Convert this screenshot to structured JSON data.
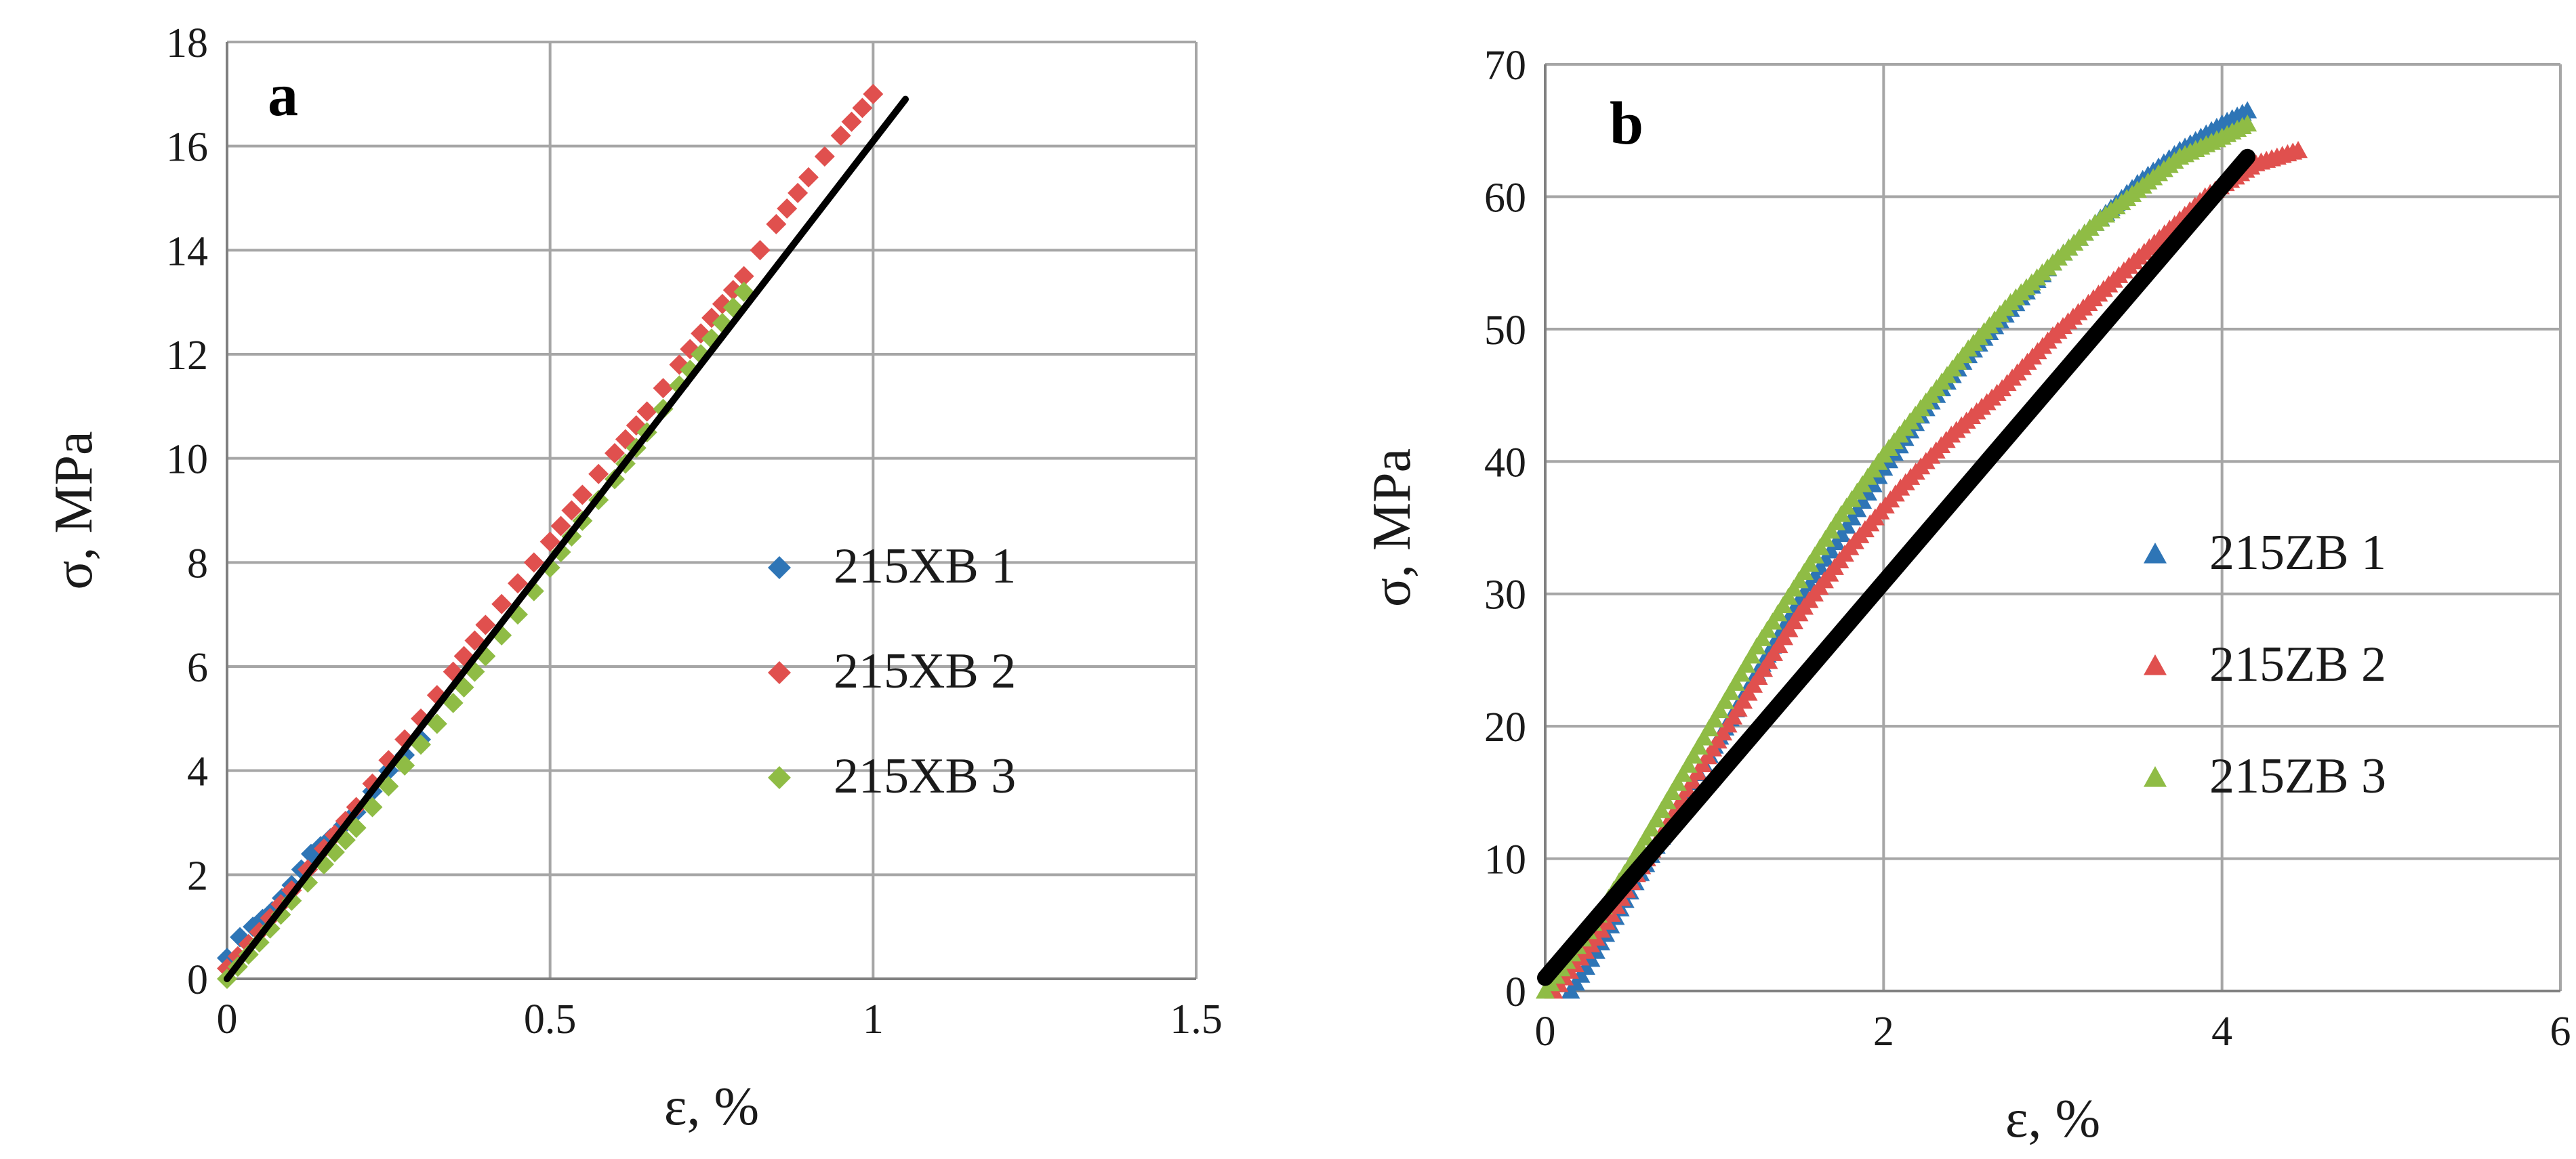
{
  "chart_data": [
    {
      "type": "scatter",
      "panel": "a",
      "xlabel": "ε, %",
      "ylabel": "σ, MPa",
      "xlim": [
        0,
        1.5
      ],
      "ylim": [
        0,
        18
      ],
      "xticks": [
        "0",
        "0.5",
        "1",
        "1.5"
      ],
      "yticks": [
        "0",
        "2",
        "4",
        "6",
        "8",
        "10",
        "12",
        "14",
        "16",
        "18"
      ],
      "legend_position": "right-middle",
      "series": [
        {
          "name": "215XB 1",
          "color": "#2e75b6",
          "marker": "diamond",
          "x": [
            0.0,
            0.02,
            0.04,
            0.07,
            0.1,
            0.13,
            0.16,
            0.2,
            0.25,
            0.3
          ],
          "y": [
            0.4,
            0.8,
            1.0,
            1.3,
            1.8,
            2.4,
            2.7,
            3.2,
            4.0,
            4.6
          ]
        },
        {
          "name": "215XB 2",
          "color": "#e0504e",
          "marker": "diamond",
          "x": [
            0.0,
            0.05,
            0.1,
            0.15,
            0.2,
            0.25,
            0.3,
            0.35,
            0.4,
            0.45,
            0.5,
            0.55,
            0.6,
            0.65,
            0.7,
            0.75,
            0.8,
            0.85,
            0.9,
            0.95,
            1.0
          ],
          "y": [
            0.2,
            0.9,
            1.7,
            2.5,
            3.3,
            4.2,
            5.0,
            5.9,
            6.8,
            7.6,
            8.4,
            9.3,
            10.1,
            10.9,
            11.8,
            12.7,
            13.5,
            14.5,
            15.4,
            16.2,
            17.0
          ]
        },
        {
          "name": "215XB 3",
          "color": "#8fbc45",
          "marker": "diamond",
          "x": [
            0.0,
            0.05,
            0.1,
            0.15,
            0.2,
            0.25,
            0.3,
            0.35,
            0.4,
            0.45,
            0.5,
            0.55,
            0.6,
            0.65,
            0.7,
            0.75,
            0.8
          ],
          "y": [
            0.0,
            0.7,
            1.5,
            2.2,
            2.9,
            3.7,
            4.5,
            5.3,
            6.2,
            7.0,
            7.9,
            8.8,
            9.6,
            10.5,
            11.4,
            12.3,
            13.2
          ]
        }
      ],
      "fit_line": {
        "color": "#000000",
        "x": [
          0,
          1.05
        ],
        "y": [
          0,
          16.9
        ]
      }
    },
    {
      "type": "scatter",
      "panel": "b",
      "xlabel": "ε, %",
      "ylabel": "σ, MPa",
      "xlim": [
        0,
        6
      ],
      "ylim": [
        0,
        70
      ],
      "xticks": [
        "0",
        "2",
        "4",
        "6"
      ],
      "yticks": [
        "0",
        "10",
        "20",
        "30",
        "40",
        "50",
        "60",
        "70"
      ],
      "legend_position": "right-middle",
      "series": [
        {
          "name": "215ZB 1",
          "color": "#2e75b6",
          "marker": "triangle",
          "x": [
            0.15,
            0.3,
            0.5,
            0.75,
            1.0,
            1.25,
            1.5,
            1.75,
            2.0,
            2.25,
            2.5,
            2.75,
            3.0,
            3.25,
            3.5,
            3.75,
            4.0,
            4.15
          ],
          "y": [
            0.0,
            3.0,
            7.5,
            13.0,
            18.5,
            24.0,
            29.5,
            34.5,
            39.5,
            44.0,
            48.0,
            51.5,
            55.0,
            58.0,
            61.0,
            63.5,
            65.5,
            66.5
          ]
        },
        {
          "name": "215ZB 2",
          "color": "#e0504e",
          "marker": "triangle",
          "x": [
            0.05,
            0.3,
            0.6,
            0.9,
            1.2,
            1.5,
            1.8,
            2.1,
            2.4,
            2.7,
            3.0,
            3.3,
            3.6,
            3.9,
            4.2,
            4.45
          ],
          "y": [
            0.0,
            4.0,
            10.0,
            16.5,
            22.5,
            28.5,
            33.5,
            38.0,
            42.0,
            45.5,
            49.5,
            53.0,
            56.5,
            60.0,
            62.5,
            63.5
          ]
        },
        {
          "name": "215ZB 3",
          "color": "#8fbc45",
          "marker": "triangle",
          "x": [
            0.0,
            0.25,
            0.5,
            0.75,
            1.0,
            1.25,
            1.5,
            1.75,
            2.0,
            2.25,
            2.5,
            2.75,
            3.0,
            3.25,
            3.5,
            3.75,
            4.0,
            4.15
          ],
          "y": [
            0.0,
            4.5,
            9.5,
            15.0,
            20.5,
            26.0,
            31.0,
            36.0,
            40.5,
            44.5,
            48.5,
            52.0,
            55.0,
            58.0,
            60.5,
            63.0,
            64.5,
            65.5
          ]
        }
      ],
      "fit_line": {
        "color": "#000000",
        "x": [
          0,
          4.15
        ],
        "y": [
          1.0,
          63.0
        ]
      }
    }
  ]
}
